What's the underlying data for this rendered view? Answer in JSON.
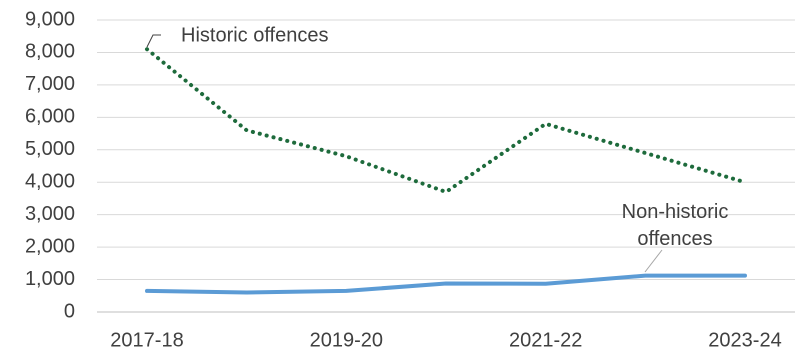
{
  "chart_data": {
    "type": "line",
    "categories": [
      "2017-18",
      null,
      "2019-20",
      null,
      "2021-22",
      null,
      "2023-24"
    ],
    "series": [
      {
        "name": "Historic offences",
        "color": "#1e6b3c",
        "dash": "dotted",
        "values": [
          8100,
          5600,
          4800,
          3700,
          5800,
          4900,
          4000
        ]
      },
      {
        "name": "Non-historic offences",
        "color": "#5b9bd5",
        "dash": "solid",
        "values": [
          650,
          600,
          650,
          880,
          870,
          1120,
          1120
        ]
      }
    ],
    "ylim": [
      0,
      9000
    ],
    "yticks": [
      0,
      {
        "value": 1000,
        "label": "1,000"
      },
      {
        "value": 2000,
        "label": "2,000"
      },
      {
        "value": 3000,
        "label": "3,000"
      },
      {
        "value": 4000,
        "label": "4,000"
      },
      {
        "value": 5000,
        "label": "5,000"
      },
      {
        "value": 6000,
        "label": "6,000"
      },
      {
        "value": 7000,
        "label": "7,000"
      },
      {
        "value": 8000,
        "label": "8,000"
      },
      {
        "value": 9000,
        "label": "9,000"
      }
    ],
    "grid": true
  }
}
